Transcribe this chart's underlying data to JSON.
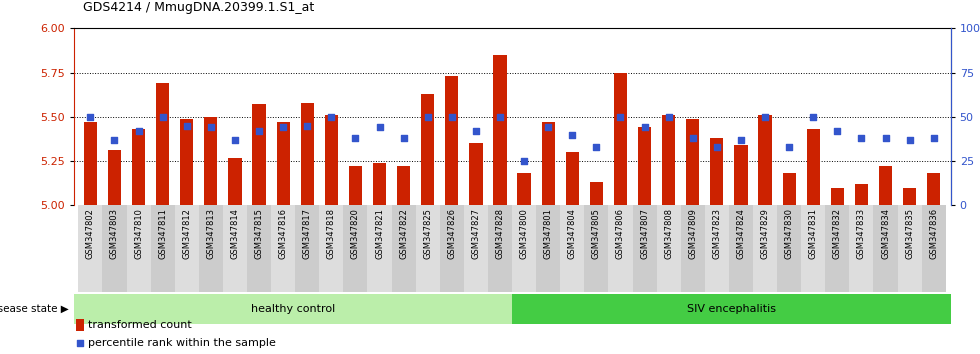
{
  "title": "GDS4214 / MmugDNA.20399.1.S1_at",
  "samples": [
    "GSM347802",
    "GSM347803",
    "GSM347810",
    "GSM347811",
    "GSM347812",
    "GSM347813",
    "GSM347814",
    "GSM347815",
    "GSM347816",
    "GSM347817",
    "GSM347818",
    "GSM347820",
    "GSM347821",
    "GSM347822",
    "GSM347825",
    "GSM347826",
    "GSM347827",
    "GSM347828",
    "GSM347800",
    "GSM347801",
    "GSM347804",
    "GSM347805",
    "GSM347806",
    "GSM347807",
    "GSM347808",
    "GSM347809",
    "GSM347823",
    "GSM347824",
    "GSM347829",
    "GSM347830",
    "GSM347831",
    "GSM347832",
    "GSM347833",
    "GSM347834",
    "GSM347835",
    "GSM347836"
  ],
  "bar_values": [
    5.47,
    5.31,
    5.43,
    5.69,
    5.49,
    5.5,
    5.27,
    5.57,
    5.47,
    5.58,
    5.51,
    5.22,
    5.24,
    5.22,
    5.63,
    5.73,
    5.35,
    5.85,
    5.18,
    5.47,
    5.3,
    5.13,
    5.75,
    5.44,
    5.51,
    5.49,
    5.38,
    5.34,
    5.51,
    5.18,
    5.43,
    5.1,
    5.12,
    5.22,
    5.1,
    5.18
  ],
  "dot_values": [
    50,
    37,
    42,
    50,
    45,
    44,
    37,
    42,
    44,
    45,
    50,
    38,
    44,
    38,
    50,
    50,
    42,
    50,
    25,
    44,
    40,
    33,
    50,
    44,
    50,
    38,
    33,
    37,
    50,
    33,
    50,
    42,
    38,
    38,
    37,
    38
  ],
  "healthy_count": 18,
  "bar_color": "#cc2200",
  "dot_color": "#3355cc",
  "bar_bottom": 5.0,
  "ylim_left": [
    5.0,
    6.0
  ],
  "ylim_right": [
    0,
    100
  ],
  "yticks_left": [
    5.0,
    5.25,
    5.5,
    5.75,
    6.0
  ],
  "yticks_right": [
    0,
    25,
    50,
    75,
    100
  ],
  "healthy_label": "healthy control",
  "disease_label": "SIV encephalitis",
  "healthy_color": "#bbeeaa",
  "disease_color": "#44cc44",
  "disease_state_label": "disease state",
  "legend_bar": "transformed count",
  "legend_dot": "percentile rank within the sample"
}
